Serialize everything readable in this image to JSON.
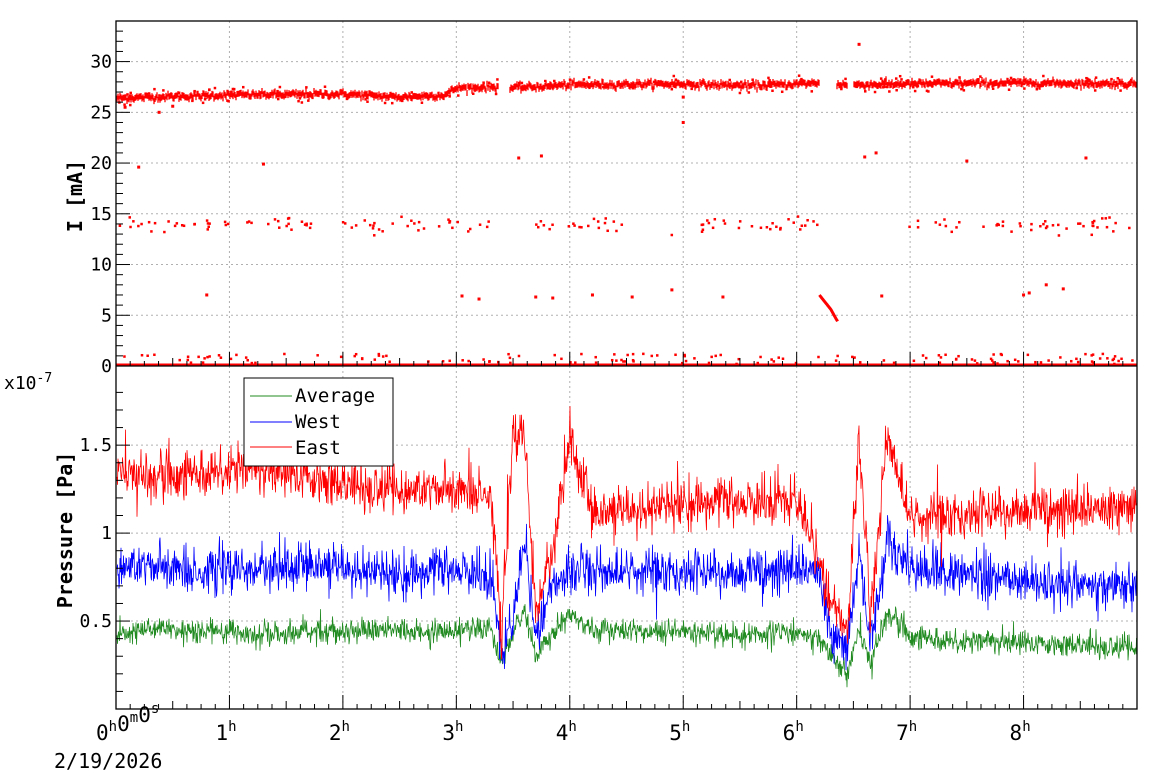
{
  "chart_data": [
    {
      "type": "scatter",
      "ylabel": "I [mA]",
      "ylim": [
        0,
        34
      ],
      "yticks": [
        "0",
        "5",
        "10",
        "15",
        "20",
        "25",
        "30"
      ],
      "grid": true,
      "series": [
        {
          "color": "#ff0000",
          "main_band": [
            [
              0,
              26.4
            ],
            [
              1,
              26.7
            ],
            [
              2,
              26.8
            ],
            [
              2.5,
              26.5
            ],
            [
              2.9,
              26.7
            ],
            [
              3.0,
              27.4
            ],
            [
              3.35,
              27.5
            ],
            [
              3.5,
              27.4
            ],
            [
              4,
              27.7
            ],
            [
              5,
              27.8
            ],
            [
              5.6,
              27.6
            ],
            [
              6.0,
              27.8
            ],
            [
              6.2,
              27.9
            ],
            [
              6.45,
              27.7
            ],
            [
              7,
              27.8
            ],
            [
              8,
              27.9
            ],
            [
              9,
              27.8
            ]
          ],
          "band_gaps": [
            [
              3.37,
              3.47
            ],
            [
              6.2,
              6.35
            ],
            [
              6.45,
              6.5
            ]
          ],
          "baseline": 0,
          "mid_band_level": 13.9,
          "mid_band_gaps": [
            [
              3.3,
              3.7
            ],
            [
              4.5,
              4.85
            ],
            [
              6.25,
              6.95
            ]
          ],
          "outliers": [
            [
              0.08,
              25.5
            ],
            [
              0.2,
              19.6
            ],
            [
              0.38,
              25.0
            ],
            [
              0.5,
              25.6
            ],
            [
              0.8,
              7.0
            ],
            [
              1.3,
              19.9
            ],
            [
              3.05,
              6.9
            ],
            [
              3.2,
              6.6
            ],
            [
              3.55,
              20.5
            ],
            [
              3.7,
              6.8
            ],
            [
              3.75,
              20.7
            ],
            [
              3.85,
              6.7
            ],
            [
              4.2,
              7.0
            ],
            [
              4.55,
              6.8
            ],
            [
              4.9,
              7.5
            ],
            [
              5.0,
              24.0
            ],
            [
              5.0,
              26.5
            ],
            [
              5.35,
              6.8
            ],
            [
              6.55,
              31.7
            ],
            [
              6.6,
              20.6
            ],
            [
              6.7,
              21.0
            ],
            [
              6.75,
              6.9
            ],
            [
              7.5,
              20.2
            ],
            [
              8.0,
              7.0
            ],
            [
              8.05,
              7.2
            ],
            [
              8.2,
              8.0
            ],
            [
              8.35,
              7.6
            ],
            [
              8.55,
              20.5
            ]
          ],
          "decay_segment": [
            [
              6.2,
              7.0
            ],
            [
              6.3,
              5.6
            ],
            [
              6.36,
              4.4
            ]
          ]
        }
      ]
    },
    {
      "type": "line",
      "xlabel": "",
      "ylabel": "Pressure [Pa]",
      "y_multiplier": "x10",
      "y_multiplier_exp": "-7",
      "ylim": [
        0.0,
        1.95
      ],
      "yticks": [
        "0.5",
        "1",
        "1.5"
      ],
      "xlim": [
        0,
        9
      ],
      "x_tick_labels": [
        "0h0m0s",
        "1h",
        "2h",
        "3h",
        "4h",
        "5h",
        "6h",
        "7h",
        "8h"
      ],
      "x_date_label": "2/19/2026",
      "grid": true,
      "legend_position": "top-left",
      "series": [
        {
          "name": "Average",
          "color": "#228b22",
          "points": [
            [
              0,
              0.44
            ],
            [
              0.5,
              0.45
            ],
            [
              1,
              0.44
            ],
            [
              1.5,
              0.43
            ],
            [
              2,
              0.45
            ],
            [
              2.5,
              0.44
            ],
            [
              3,
              0.44
            ],
            [
              3.3,
              0.45
            ],
            [
              3.4,
              0.26
            ],
            [
              3.5,
              0.43
            ],
            [
              3.6,
              0.56
            ],
            [
              3.7,
              0.32
            ],
            [
              3.85,
              0.43
            ],
            [
              4,
              0.55
            ],
            [
              4.2,
              0.45
            ],
            [
              5,
              0.44
            ],
            [
              5.5,
              0.42
            ],
            [
              6,
              0.43
            ],
            [
              6.2,
              0.41
            ],
            [
              6.3,
              0.3
            ],
            [
              6.45,
              0.2
            ],
            [
              6.55,
              0.45
            ],
            [
              6.65,
              0.26
            ],
            [
              6.8,
              0.55
            ],
            [
              7,
              0.4
            ],
            [
              8,
              0.38
            ],
            [
              9,
              0.35
            ]
          ]
        },
        {
          "name": "West",
          "color": "#0000ff",
          "points": [
            [
              0,
              0.82
            ],
            [
              0.5,
              0.8
            ],
            [
              1,
              0.78
            ],
            [
              1.5,
              0.81
            ],
            [
              2,
              0.8
            ],
            [
              2.5,
              0.75
            ],
            [
              3,
              0.8
            ],
            [
              3.3,
              0.76
            ],
            [
              3.4,
              0.33
            ],
            [
              3.5,
              0.52
            ],
            [
              3.6,
              0.96
            ],
            [
              3.7,
              0.42
            ],
            [
              3.85,
              0.7
            ],
            [
              4,
              0.78
            ],
            [
              4.5,
              0.8
            ],
            [
              5,
              0.78
            ],
            [
              5.5,
              0.76
            ],
            [
              6,
              0.8
            ],
            [
              6.2,
              0.78
            ],
            [
              6.3,
              0.42
            ],
            [
              6.45,
              0.35
            ],
            [
              6.55,
              0.9
            ],
            [
              6.65,
              0.4
            ],
            [
              6.8,
              0.95
            ],
            [
              7,
              0.8
            ],
            [
              8,
              0.72
            ],
            [
              9,
              0.7
            ]
          ]
        },
        {
          "name": "East",
          "color": "#ff0000",
          "points": [
            [
              0,
              1.35
            ],
            [
              0.5,
              1.3
            ],
            [
              1,
              1.38
            ],
            [
              1.5,
              1.35
            ],
            [
              2,
              1.28
            ],
            [
              2.5,
              1.25
            ],
            [
              3,
              1.24
            ],
            [
              3.3,
              1.25
            ],
            [
              3.4,
              0.42
            ],
            [
              3.5,
              1.55
            ],
            [
              3.6,
              1.55
            ],
            [
              3.7,
              0.55
            ],
            [
              3.85,
              0.9
            ],
            [
              4,
              1.55
            ],
            [
              4.2,
              1.1
            ],
            [
              5,
              1.16
            ],
            [
              5.5,
              1.18
            ],
            [
              6,
              1.2
            ],
            [
              6.2,
              0.85
            ],
            [
              6.3,
              0.6
            ],
            [
              6.45,
              0.45
            ],
            [
              6.55,
              1.55
            ],
            [
              6.65,
              0.5
            ],
            [
              6.8,
              1.58
            ],
            [
              7,
              1.1
            ],
            [
              8,
              1.12
            ],
            [
              9,
              1.15
            ]
          ]
        }
      ]
    }
  ]
}
